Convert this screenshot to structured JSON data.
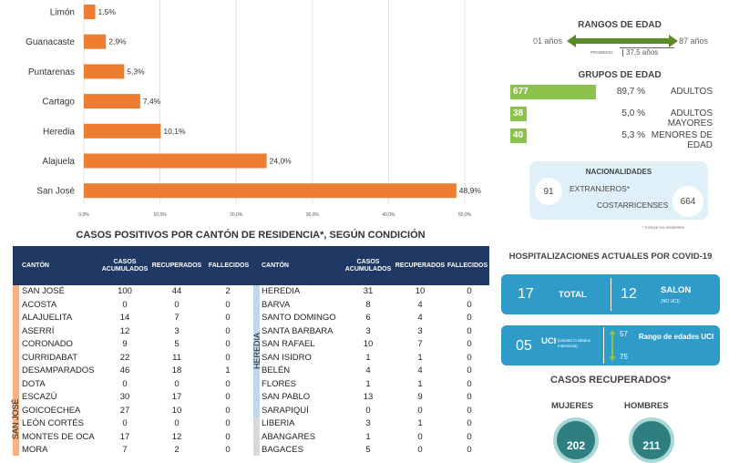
{
  "chart_data": {
    "type": "bar",
    "orientation": "horizontal",
    "categories": [
      "Limón",
      "Guanacaste",
      "Puntarenas",
      "Cartago",
      "Heredia",
      "Alajuela",
      "San José"
    ],
    "values": [
      1.5,
      2.9,
      5.3,
      7.4,
      10.1,
      24.0,
      48.9
    ],
    "value_labels": [
      "1,5%",
      "2,9%",
      "5,3%",
      "7,4%",
      "10,1%",
      "24,0%",
      "48,9%"
    ],
    "xlim": [
      0,
      50
    ],
    "ticks": [
      "0,0%",
      "10,0%",
      "20,0%",
      "30,0%",
      "40,0%",
      "50,0%"
    ],
    "bar_color": "#ed7d31",
    "grid": true
  },
  "table": {
    "title": "CASOS POSITIVOS POR CANTÓN DE RESIDENCIA*, SEGÚN CONDICIÓN",
    "header_color": "#1f3864",
    "headers": {
      "canton": "CANTÓN",
      "casos": "CASOS ACUMULADOS",
      "recuperados": "RECUPERADOS",
      "fallecidos": "FALLECIDOS"
    },
    "left": {
      "province": "SAN JOSÉ",
      "rows": [
        [
          "SAN JOSÉ",
          "100",
          "44",
          "2"
        ],
        [
          "ACOSTA",
          "0",
          "0",
          "0"
        ],
        [
          "ALAJUELITA",
          "14",
          "7",
          "0"
        ],
        [
          "ASERRÍ",
          "12",
          "3",
          "0"
        ],
        [
          "CORONADO",
          "9",
          "5",
          "0"
        ],
        [
          "CURRIDABAT",
          "22",
          "11",
          "0"
        ],
        [
          "DESAMPARADOS",
          "46",
          "18",
          "1"
        ],
        [
          "DOTA",
          "0",
          "0",
          "0"
        ],
        [
          "ESCAZÚ",
          "30",
          "17",
          "0"
        ],
        [
          "GOICOECHEA",
          "27",
          "10",
          "0"
        ],
        [
          "LEÓN CORTÉS",
          "0",
          "0",
          "0"
        ],
        [
          "MONTES DE OCA",
          "17",
          "12",
          "0"
        ],
        [
          "MORA",
          "7",
          "2",
          "0"
        ]
      ]
    },
    "right": {
      "province": "HEREDIA",
      "rows": [
        [
          "HEREDIA",
          "31",
          "10",
          "0"
        ],
        [
          "BARVA",
          "8",
          "4",
          "0"
        ],
        [
          "SANTO DOMINGO",
          "6",
          "4",
          "0"
        ],
        [
          "SANTA BARBARA",
          "3",
          "3",
          "0"
        ],
        [
          "SAN RAFAEL",
          "10",
          "7",
          "0"
        ],
        [
          "SAN ISIDRO",
          "1",
          "1",
          "0"
        ],
        [
          "BELÉN",
          "4",
          "4",
          "0"
        ],
        [
          "FLORES",
          "1",
          "1",
          "0"
        ],
        [
          "SAN PABLO",
          "13",
          "9",
          "0"
        ],
        [
          "SARAPIQUÍ",
          "0",
          "0",
          "0"
        ],
        [
          "LIBERIA",
          "3",
          "1",
          "0"
        ],
        [
          "ABANGARES",
          "1",
          "0",
          "0"
        ],
        [
          "BAGACES",
          "5",
          "0",
          "0"
        ]
      ]
    }
  },
  "rangos": {
    "title": "RANGOS DE EDAD",
    "min": "01 años",
    "max": "87 años",
    "promedio_label": "PROMEDIO",
    "promedio": "37,5 años",
    "color": "#5b8c2a"
  },
  "grupos": {
    "title": "GRUPOS DE EDAD",
    "items": [
      {
        "count": "677",
        "pct": "89,7 %",
        "label": "ADULTOS",
        "fraction": 0.897
      },
      {
        "count": "38",
        "pct": "5,0 %",
        "label": "ADULTOS MAYORES",
        "fraction": 0.05
      },
      {
        "count": "40",
        "pct": "5,3 %",
        "label": "MENORES DE EDAD",
        "fraction": 0.053
      }
    ],
    "color": "#8bc34a"
  },
  "nacionalidades": {
    "title": "NACIONALIDADES",
    "extranjeros_count": "91",
    "extranjeros_label": "EXTRANJEROS*",
    "costarricenses_count": "664",
    "costarricenses_label": "COSTARRICENSES",
    "footnote": "* Incluye los residentes"
  },
  "hospitalizaciones": {
    "title": "HOSPITALIZACIONES ACTUALES POR COVID-19",
    "total_count": "17",
    "total_label": "TOTAL",
    "salon_count": "12",
    "salon_label": "SALON",
    "salon_sub": "(NO UCI)",
    "uci_count": "05",
    "uci_label": "UCI",
    "uci_sub": "(Unidad Cuidados Intensivos)",
    "rango_max": "57",
    "rango_min": "75",
    "rango_label": "Rango de edades UCI"
  },
  "recuperados": {
    "title": "CASOS RECUPERADOS*",
    "mujeres_label": "MUJERES",
    "hombres_label": "HOMBRES",
    "mujeres": "202",
    "hombres": "211"
  }
}
